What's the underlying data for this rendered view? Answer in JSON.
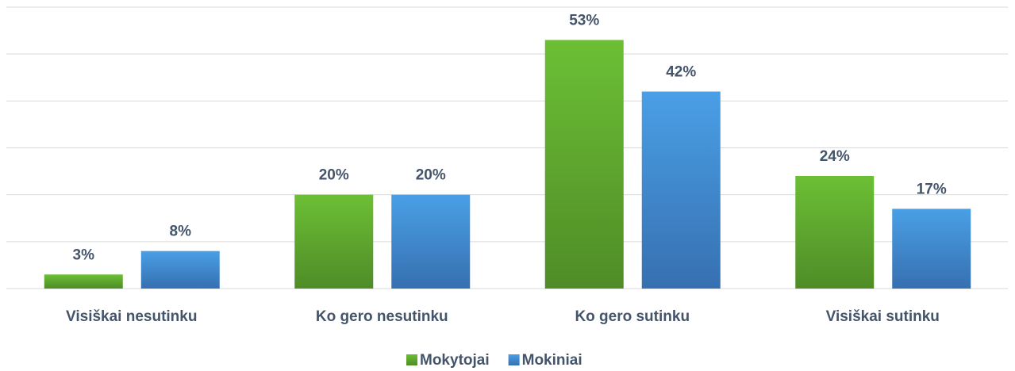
{
  "chart_data": {
    "type": "bar",
    "categories": [
      "Visiškai nesutinku",
      "Ko gero nesutinku",
      "Ko gero sutinku",
      "Visiškai sutinku"
    ],
    "series": [
      {
        "name": "Mokytojai",
        "color": "#5fa52c",
        "values": [
          3,
          20,
          53,
          24
        ],
        "value_labels": [
          "3%",
          "20%",
          "53%",
          "24%"
        ]
      },
      {
        "name": "Mokiniai",
        "color": "#3f88d0",
        "values": [
          8,
          20,
          42,
          17
        ],
        "value_labels": [
          "8%",
          "20%",
          "42%",
          "17%"
        ]
      }
    ],
    "ylim": [
      0,
      60
    ],
    "yticks": [
      0,
      10,
      20,
      30,
      40,
      50,
      60
    ],
    "grid": true,
    "legend": "bottom"
  }
}
